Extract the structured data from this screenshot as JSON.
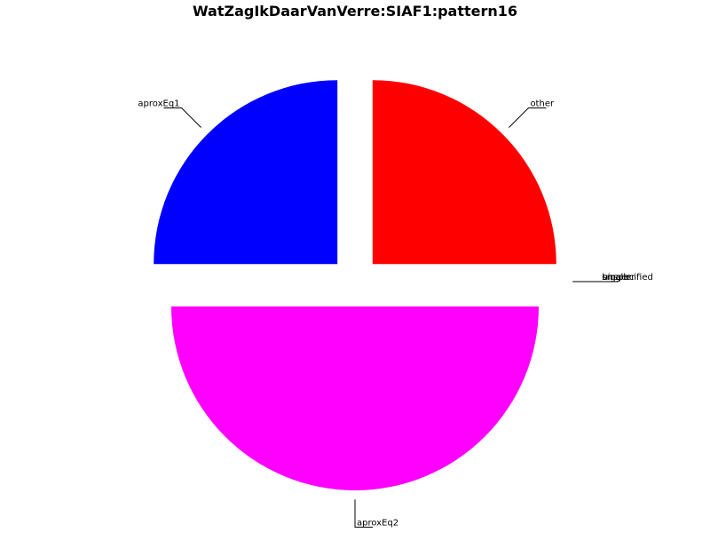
{
  "chart_data": {
    "type": "pie",
    "title": "WatZagIkDaarVanVerre:SIAF1:pattern16",
    "slices": [
      {
        "label": "other",
        "value": 25,
        "color": "#ff0000"
      },
      {
        "label": "aproxEq1",
        "value": 25,
        "color": "#0000ff"
      },
      {
        "label": "aproxEq2",
        "value": 50,
        "color": "#ff00ff"
      },
      {
        "label": "bigger",
        "value": 0,
        "color": "#00ff00"
      },
      {
        "label": "smaller",
        "value": 0,
        "color": "#00ffff"
      },
      {
        "label": "unspecified",
        "value": 0,
        "color": "#ffff00"
      }
    ],
    "start_angle_deg": 0,
    "direction": "counterclockwise",
    "exploded": true,
    "legend": "none",
    "grid": false
  }
}
